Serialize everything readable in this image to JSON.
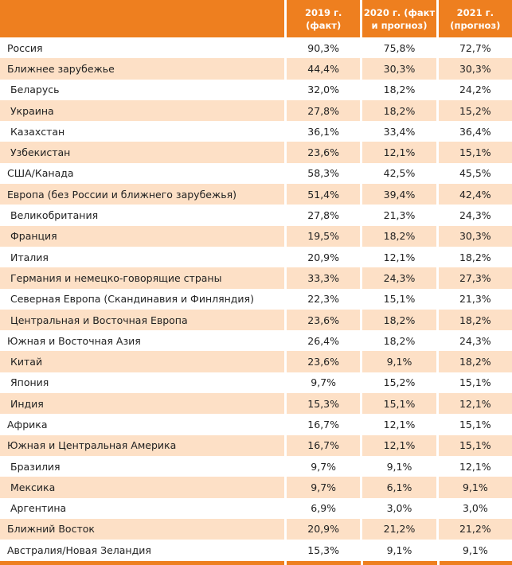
{
  "header": {
    "col1": "2019 г.\n(факт)",
    "col1_a": "2019 г.",
    "col1_b": "(факт)",
    "col2_a": "2020 г. (факт",
    "col2_b": "и прогноз)",
    "col3_a": "2021 г.",
    "col3_b": "(прогноз)"
  },
  "rows": [
    {
      "name": "Россия",
      "sub": false,
      "v": [
        "90,3%",
        "75,8%",
        "72,7%"
      ]
    },
    {
      "name": "Ближнее зарубежье",
      "sub": false,
      "v": [
        "44,4%",
        "30,3%",
        "30,3%"
      ]
    },
    {
      "name": "Беларусь",
      "sub": true,
      "v": [
        "32,0%",
        "18,2%",
        "24,2%"
      ]
    },
    {
      "name": "Украина",
      "sub": true,
      "v": [
        "27,8%",
        "18,2%",
        "15,2%"
      ]
    },
    {
      "name": "Казахстан",
      "sub": true,
      "v": [
        "36,1%",
        "33,4%",
        "36,4%"
      ]
    },
    {
      "name": "Узбекистан",
      "sub": true,
      "v": [
        "23,6%",
        "12,1%",
        "15,1%"
      ]
    },
    {
      "name": "США/Канада",
      "sub": false,
      "v": [
        "58,3%",
        "42,5%",
        "45,5%"
      ]
    },
    {
      "name": "Европа (без России и ближнего зарубежья)",
      "sub": false,
      "v": [
        "51,4%",
        "39,4%",
        "42,4%"
      ]
    },
    {
      "name": "Великобритания",
      "sub": true,
      "v": [
        "27,8%",
        "21,3%",
        "24,3%"
      ]
    },
    {
      "name": "Франция",
      "sub": true,
      "v": [
        "19,5%",
        "18,2%",
        "30,3%"
      ]
    },
    {
      "name": "Италия",
      "sub": true,
      "v": [
        "20,9%",
        "12,1%",
        "18,2%"
      ]
    },
    {
      "name": "Германия и немецко-говорящие страны",
      "sub": true,
      "v": [
        "33,3%",
        "24,3%",
        "27,3%"
      ]
    },
    {
      "name": "Северная Европа (Скандинавия и Финляндия)",
      "sub": true,
      "v": [
        "22,3%",
        "15,1%",
        "21,3%"
      ]
    },
    {
      "name": "Центральная и Восточная Европа",
      "sub": true,
      "v": [
        "23,6%",
        "18,2%",
        "18,2%"
      ]
    },
    {
      "name": "Южная и Восточная Азия",
      "sub": false,
      "v": [
        "26,4%",
        "18,2%",
        "24,3%"
      ]
    },
    {
      "name": "Китай",
      "sub": true,
      "v": [
        "23,6%",
        "9,1%",
        "18,2%"
      ]
    },
    {
      "name": "Япония",
      "sub": true,
      "v": [
        "9,7%",
        "15,2%",
        "15,1%"
      ]
    },
    {
      "name": "Индия",
      "sub": true,
      "v": [
        "15,3%",
        "15,1%",
        "12,1%"
      ]
    },
    {
      "name": "Африка",
      "sub": false,
      "v": [
        "16,7%",
        "12,1%",
        "15,1%"
      ]
    },
    {
      "name": "Южная и Центральная Америка",
      "sub": false,
      "v": [
        "16,7%",
        "12,1%",
        "15,1%"
      ]
    },
    {
      "name": "Бразилия",
      "sub": true,
      "v": [
        "9,7%",
        "9,1%",
        "12,1%"
      ]
    },
    {
      "name": "Мексика",
      "sub": true,
      "v": [
        "9,7%",
        "6,1%",
        "9,1%"
      ]
    },
    {
      "name": "Аргентина",
      "sub": true,
      "v": [
        "6,9%",
        "3,0%",
        "3,0%"
      ]
    },
    {
      "name": "Ближний Восток",
      "sub": false,
      "v": [
        "20,9%",
        "21,2%",
        "21,2%"
      ]
    },
    {
      "name": "Австралия/Новая Зеландия",
      "sub": false,
      "v": [
        "15,3%",
        "9,1%",
        "9,1%"
      ]
    }
  ]
}
